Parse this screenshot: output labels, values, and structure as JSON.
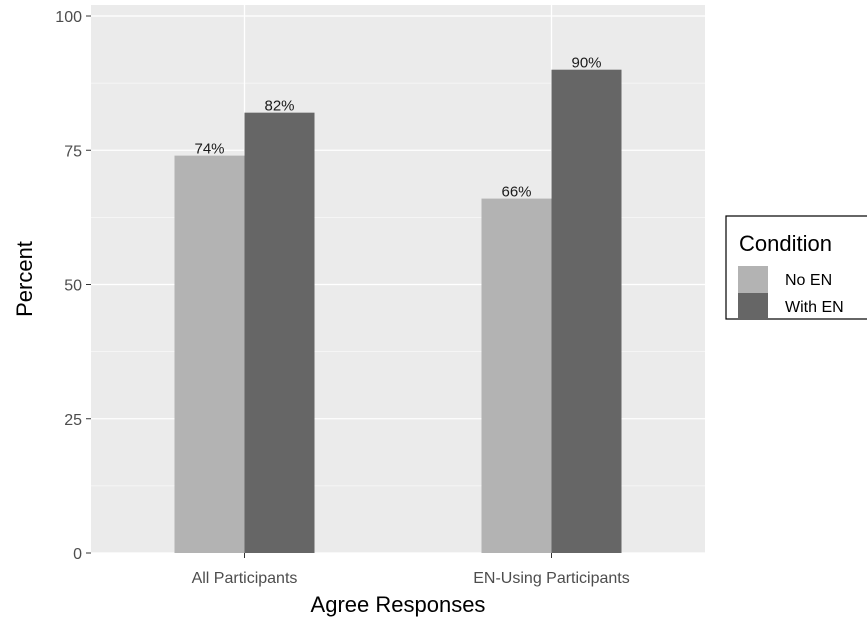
{
  "chart_data": {
    "type": "bar",
    "title": "",
    "xlabel": "Agree Responses",
    "ylabel": "Percent",
    "ylim": [
      0,
      100
    ],
    "yticks": [
      0,
      25,
      50,
      75,
      100
    ],
    "grid": true,
    "categories": [
      "All Participants",
      "EN-Using Participants"
    ],
    "series": [
      {
        "name": "No EN",
        "values": [
          74,
          66
        ],
        "labels": [
          "74%",
          "66%"
        ],
        "color": "#b3b3b3"
      },
      {
        "name": "With EN",
        "values": [
          82,
          90
        ],
        "labels": [
          "82%",
          "90%"
        ],
        "color": "#666666"
      }
    ],
    "legend": {
      "title": "Condition",
      "position": "right"
    },
    "panel_background": "#ebebeb",
    "gridline_color": "#ffffff"
  }
}
